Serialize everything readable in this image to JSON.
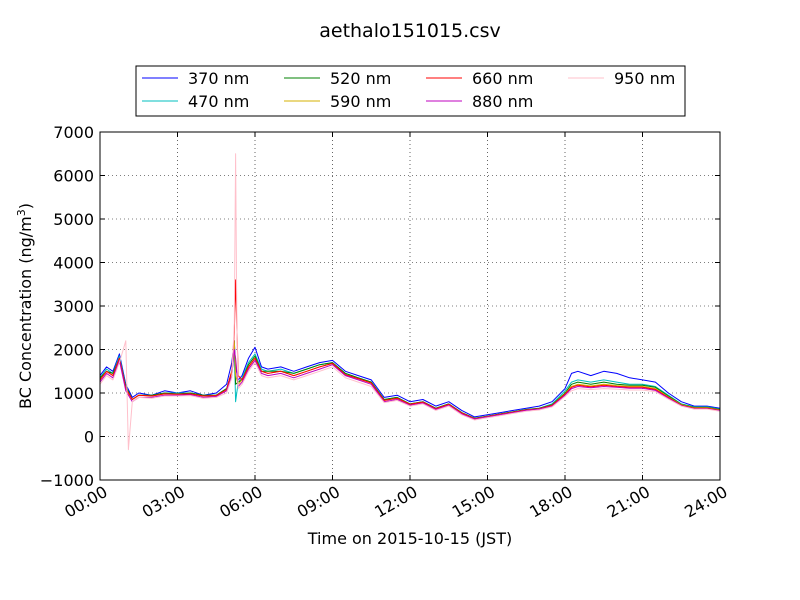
{
  "chart_data": {
    "type": "line",
    "title": "aethalo151015.csv",
    "xlabel": "Time on 2015-10-15 (JST)",
    "ylabel": "BC Concentration (ng/m",
    "ylabel_sup": "3",
    "ylabel_close": ")",
    "xlim": [
      0,
      24
    ],
    "ylim": [
      -1000,
      7000
    ],
    "xticks": [
      0,
      3,
      6,
      9,
      12,
      15,
      18,
      21,
      24
    ],
    "xtick_labels": [
      "00:00",
      "03:00",
      "06:00",
      "09:00",
      "12:00",
      "15:00",
      "18:00",
      "21:00",
      "24:00"
    ],
    "yticks": [
      -1000,
      0,
      1000,
      2000,
      3000,
      4000,
      5000,
      6000,
      7000
    ],
    "ytick_labels": [
      "−1000",
      "0",
      "1000",
      "2000",
      "3000",
      "4000",
      "5000",
      "6000",
      "7000"
    ],
    "grid": true,
    "legend_position": "top",
    "series": [
      {
        "name": "370 nm",
        "color": "#0000ff",
        "x": [
          0,
          0.25,
          0.5,
          0.75,
          1,
          1.25,
          1.5,
          2,
          2.5,
          3,
          3.5,
          4,
          4.5,
          4.9,
          5.1,
          5.2,
          5.25,
          5.35,
          5.5,
          5.75,
          6,
          6.25,
          6.5,
          7,
          7.5,
          8,
          8.5,
          9,
          9.5,
          10,
          10.5,
          11,
          11.5,
          12,
          12.5,
          13,
          13.5,
          14,
          14.5,
          15,
          15.5,
          16,
          16.5,
          17,
          17.5,
          18,
          18.25,
          18.5,
          19,
          19.5,
          20,
          20.5,
          21,
          21.5,
          22,
          22.5,
          23,
          23.5,
          24
        ],
        "y": [
          1400,
          1600,
          1500,
          1900,
          1200,
          900,
          1000,
          950,
          1050,
          1000,
          1050,
          950,
          1000,
          1200,
          1700,
          2200,
          1600,
          1300,
          1400,
          1800,
          2050,
          1600,
          1550,
          1600,
          1500,
          1600,
          1700,
          1750,
          1500,
          1400,
          1300,
          900,
          950,
          800,
          850,
          700,
          800,
          600,
          450,
          500,
          550,
          600,
          650,
          700,
          800,
          1100,
          1450,
          1500,
          1400,
          1500,
          1450,
          1350,
          1300,
          1250,
          1000,
          800,
          700,
          700,
          650
        ]
      },
      {
        "name": "470 nm",
        "color": "#00bfbf",
        "x": [
          0,
          0.25,
          0.5,
          0.75,
          1,
          1.25,
          1.5,
          2,
          2.5,
          3,
          3.5,
          4,
          4.5,
          4.9,
          5.1,
          5.2,
          5.25,
          5.35,
          5.5,
          5.75,
          6,
          6.25,
          6.5,
          7,
          7.5,
          8,
          8.5,
          9,
          9.5,
          10,
          10.5,
          11,
          11.5,
          12,
          12.5,
          13,
          13.5,
          14,
          14.5,
          15,
          15.5,
          16,
          16.5,
          17,
          17.5,
          18,
          18.25,
          18.5,
          19,
          19.5,
          20,
          20.5,
          21,
          21.5,
          22,
          22.5,
          23,
          23.5,
          24
        ],
        "y": [
          1350,
          1550,
          1450,
          1850,
          1150,
          850,
          950,
          950,
          1000,
          1000,
          1000,
          950,
          950,
          1100,
          1400,
          2000,
          800,
          1250,
          1350,
          1700,
          1900,
          1550,
          1500,
          1550,
          1450,
          1550,
          1650,
          1700,
          1450,
          1350,
          1250,
          850,
          900,
          750,
          800,
          650,
          750,
          550,
          420,
          470,
          520,
          570,
          620,
          650,
          750,
          1050,
          1250,
          1300,
          1250,
          1300,
          1250,
          1200,
          1200,
          1150,
          950,
          750,
          680,
          680,
          630
        ]
      },
      {
        "name": "520 nm",
        "color": "#008000",
        "x": [
          0,
          0.25,
          0.5,
          0.75,
          1,
          1.25,
          1.5,
          2,
          2.5,
          3,
          3.5,
          4,
          4.5,
          4.9,
          5.1,
          5.2,
          5.25,
          5.35,
          5.5,
          5.75,
          6,
          6.25,
          6.5,
          7,
          7.5,
          8,
          8.5,
          9,
          9.5,
          10,
          10.5,
          11,
          11.5,
          12,
          12.5,
          13,
          13.5,
          14,
          14.5,
          15,
          15.5,
          16,
          16.5,
          17,
          17.5,
          18,
          18.25,
          18.5,
          19,
          19.5,
          20,
          20.5,
          21,
          21.5,
          22,
          22.5,
          23,
          23.5,
          24
        ],
        "y": [
          1350,
          1500,
          1450,
          1800,
          1150,
          850,
          950,
          950,
          1000,
          980,
          1000,
          950,
          950,
          1100,
          1500,
          2100,
          1200,
          1250,
          1300,
          1650,
          1850,
          1500,
          1500,
          1500,
          1450,
          1550,
          1650,
          1700,
          1450,
          1350,
          1250,
          850,
          900,
          750,
          800,
          650,
          750,
          550,
          420,
          470,
          520,
          570,
          620,
          650,
          730,
          1000,
          1200,
          1250,
          1200,
          1250,
          1200,
          1180,
          1180,
          1130,
          930,
          740,
          670,
          670,
          620
        ]
      },
      {
        "name": "590 nm",
        "color": "#d4b000",
        "x": [
          0,
          0.25,
          0.5,
          0.75,
          1,
          1.25,
          1.5,
          2,
          2.5,
          3,
          3.5,
          4,
          4.5,
          4.9,
          5.1,
          5.2,
          5.25,
          5.35,
          5.5,
          5.75,
          6,
          6.25,
          6.5,
          7,
          7.5,
          8,
          8.5,
          9,
          9.5,
          10,
          10.5,
          11,
          11.5,
          12,
          12.5,
          13,
          13.5,
          14,
          14.5,
          15,
          15.5,
          16,
          16.5,
          17,
          17.5,
          18,
          18.25,
          18.5,
          19,
          19.5,
          20,
          20.5,
          21,
          21.5,
          22,
          22.5,
          23,
          23.5,
          24
        ],
        "y": [
          1300,
          1500,
          1400,
          1800,
          1100,
          850,
          950,
          930,
          980,
          970,
          980,
          930,
          940,
          1080,
          1500,
          2200,
          1400,
          1200,
          1300,
          1600,
          1800,
          1500,
          1450,
          1500,
          1400,
          1500,
          1600,
          1680,
          1420,
          1330,
          1230,
          830,
          880,
          740,
          790,
          640,
          740,
          540,
          410,
          460,
          510,
          560,
          610,
          640,
          720,
          980,
          1150,
          1200,
          1160,
          1200,
          1170,
          1150,
          1150,
          1100,
          910,
          730,
          660,
          660,
          610
        ]
      },
      {
        "name": "660 nm",
        "color": "#ff0000",
        "x": [
          0,
          0.25,
          0.5,
          0.75,
          1,
          1.25,
          1.5,
          2,
          2.5,
          3,
          3.5,
          4,
          4.5,
          4.9,
          5.1,
          5.2,
          5.25,
          5.35,
          5.5,
          5.75,
          6,
          6.25,
          6.5,
          7,
          7.5,
          8,
          8.5,
          9,
          9.5,
          10,
          10.5,
          11,
          11.5,
          12,
          12.5,
          13,
          13.5,
          14,
          14.5,
          15,
          15.5,
          16,
          16.5,
          17,
          17.5,
          18,
          18.25,
          18.5,
          19,
          19.5,
          20,
          20.5,
          21,
          21.5,
          22,
          22.5,
          23,
          23.5,
          24
        ],
        "y": [
          1300,
          1500,
          1400,
          1800,
          1100,
          850,
          950,
          930,
          980,
          970,
          980,
          930,
          940,
          1080,
          1500,
          2400,
          3600,
          1400,
          1300,
          1600,
          1800,
          1500,
          1450,
          1500,
          1400,
          1500,
          1600,
          1680,
          1420,
          1330,
          1230,
          830,
          880,
          740,
          790,
          640,
          740,
          540,
          410,
          460,
          510,
          560,
          610,
          640,
          720,
          970,
          1130,
          1180,
          1140,
          1180,
          1150,
          1130,
          1130,
          1080,
          900,
          720,
          650,
          650,
          600
        ]
      },
      {
        "name": "880 nm",
        "color": "#bf00bf",
        "x": [
          0,
          0.25,
          0.5,
          0.75,
          1,
          1.25,
          1.5,
          2,
          2.5,
          3,
          3.5,
          4,
          4.5,
          4.9,
          5.1,
          5.2,
          5.25,
          5.35,
          5.5,
          5.75,
          6,
          6.25,
          6.5,
          7,
          7.5,
          8,
          8.5,
          9,
          9.5,
          10,
          10.5,
          11,
          11.5,
          12,
          12.5,
          13,
          13.5,
          14,
          14.5,
          15,
          15.5,
          16,
          16.5,
          17,
          17.5,
          18,
          18.25,
          18.5,
          19,
          19.5,
          20,
          20.5,
          21,
          21.5,
          22,
          22.5,
          23,
          23.5,
          24
        ],
        "y": [
          1250,
          1450,
          1350,
          1750,
          1050,
          800,
          900,
          900,
          950,
          950,
          960,
          900,
          920,
          1050,
          1400,
          2000,
          1800,
          1150,
          1250,
          1550,
          1750,
          1450,
          1400,
          1450,
          1350,
          1450,
          1550,
          1650,
          1400,
          1300,
          1200,
          800,
          850,
          720,
          770,
          620,
          720,
          520,
          400,
          450,
          500,
          550,
          600,
          630,
          700,
          950,
          1100,
          1150,
          1120,
          1150,
          1130,
          1110,
          1110,
          1060,
          880,
          710,
          640,
          640,
          590
        ]
      },
      {
        "name": "950 nm",
        "color": "#ffc0cb",
        "x": [
          0,
          0.25,
          0.5,
          0.75,
          1,
          1.1,
          1.25,
          1.5,
          2,
          2.5,
          3,
          3.5,
          4,
          4.5,
          4.9,
          5.1,
          5.2,
          5.25,
          5.3,
          5.35,
          5.5,
          5.75,
          6,
          6.25,
          6.5,
          7,
          7.5,
          8,
          8.5,
          9,
          9.5,
          10,
          10.5,
          11,
          11.5,
          12,
          12.5,
          13,
          13.5,
          14,
          14.5,
          15,
          15.5,
          16,
          16.5,
          17,
          17.5,
          18,
          18.25,
          18.5,
          19,
          19.5,
          20,
          20.5,
          21,
          21.5,
          22,
          22.5,
          23,
          23.5,
          24
        ],
        "y": [
          1200,
          1400,
          1300,
          1700,
          2200,
          -300,
          800,
          900,
          880,
          930,
          930,
          940,
          880,
          900,
          1000,
          1350,
          2600,
          6500,
          2500,
          1100,
          1200,
          1500,
          1700,
          1400,
          1350,
          1400,
          1300,
          1400,
          1500,
          1600,
          1350,
          1250,
          1150,
          780,
          830,
          700,
          750,
          600,
          700,
          500,
          380,
          430,
          480,
          530,
          580,
          610,
          680,
          920,
          1050,
          1100,
          1080,
          1100,
          1090,
          1070,
          1070,
          1030,
          860,
          700,
          630,
          630,
          580
        ]
      }
    ]
  }
}
